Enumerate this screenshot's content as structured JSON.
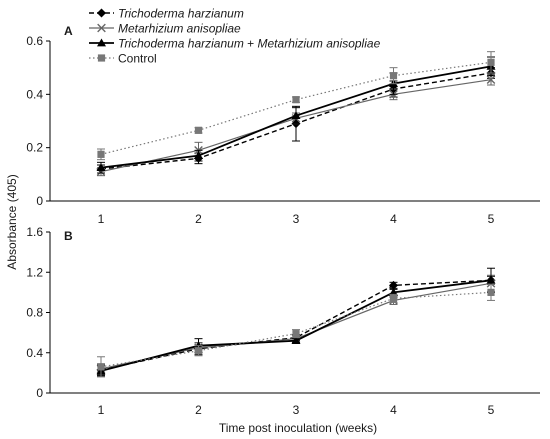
{
  "chart_data": {
    "type": "line",
    "ylabel": "Absorbance (405)",
    "xlabel": "Time post inoculation (weeks)",
    "x": [
      1,
      2,
      3,
      4,
      5
    ],
    "legend": {
      "placement": "top-left",
      "entries": [
        {
          "name": "Trichoderma harzianum",
          "italic": true
        },
        {
          "name": "Metarhizium anisopliae",
          "italic": true
        },
        {
          "name_parts": [
            "Trichoderma harzianum",
            " + ",
            "Metarhizium anisopliae"
          ],
          "italic": true
        },
        {
          "name": "Control",
          "italic": false
        }
      ]
    },
    "series_styles": [
      {
        "color": "#000000",
        "dash": "5,3",
        "marker": "diamond",
        "width": 1.4
      },
      {
        "color": "#666666",
        "dash": "",
        "marker": "x",
        "width": 1.2
      },
      {
        "color": "#000000",
        "dash": "",
        "marker": "triangle",
        "width": 1.8
      },
      {
        "color": "#777777",
        "dash": "1.5,2.5",
        "marker": "square",
        "width": 1.2
      }
    ],
    "panels": [
      {
        "label": "A",
        "ylim": [
          0,
          0.6
        ],
        "yticks": [
          0,
          0.2,
          0.4,
          0.6
        ],
        "ytick_labels": [
          "0",
          "0.2",
          "0.4",
          "0.6"
        ],
        "series": [
          {
            "values": [
              0.12,
              0.16,
              0.29,
              0.42,
              0.48
            ],
            "errors": [
              0.015,
              0.02,
              0.065,
              0.03,
              0.02
            ]
          },
          {
            "values": [
              0.11,
              0.19,
              0.31,
              0.4,
              0.455
            ],
            "errors": [
              0.015,
              0.03,
              0.02,
              0.02,
              0.02
            ]
          },
          {
            "values": [
              0.125,
              0.17,
              0.32,
              0.44,
              0.505
            ],
            "errors": [
              0.02,
              0.02,
              0.03,
              0.04,
              0.035
            ]
          },
          {
            "values": [
              0.175,
              0.265,
              0.38,
              0.47,
              0.52
            ],
            "errors": [
              0.02,
              0.01,
              0.01,
              0.03,
              0.04
            ]
          }
        ]
      },
      {
        "label": "B",
        "ylim": [
          0,
          1.6
        ],
        "yticks": [
          0,
          0.4,
          0.8,
          1.2,
          1.6
        ],
        "ytick_labels": [
          "0",
          "0.4",
          "0.8",
          "1.2",
          "1.6"
        ],
        "series": [
          {
            "values": [
              0.23,
              0.44,
              0.55,
              1.07,
              1.12
            ],
            "errors": [
              0.05,
              0.06,
              0.03,
              0.03,
              0.04
            ]
          },
          {
            "values": [
              0.24,
              0.45,
              0.54,
              0.92,
              1.09
            ],
            "errors": [
              0.05,
              0.05,
              0.03,
              0.04,
              0.08
            ]
          },
          {
            "values": [
              0.22,
              0.47,
              0.52,
              1.0,
              1.12
            ],
            "errors": [
              0.05,
              0.07,
              0.02,
              0.03,
              0.12
            ]
          },
          {
            "values": [
              0.26,
              0.42,
              0.59,
              0.94,
              1.0
            ],
            "errors": [
              0.1,
              0.05,
              0.04,
              0.04,
              0.08
            ]
          }
        ]
      }
    ]
  }
}
